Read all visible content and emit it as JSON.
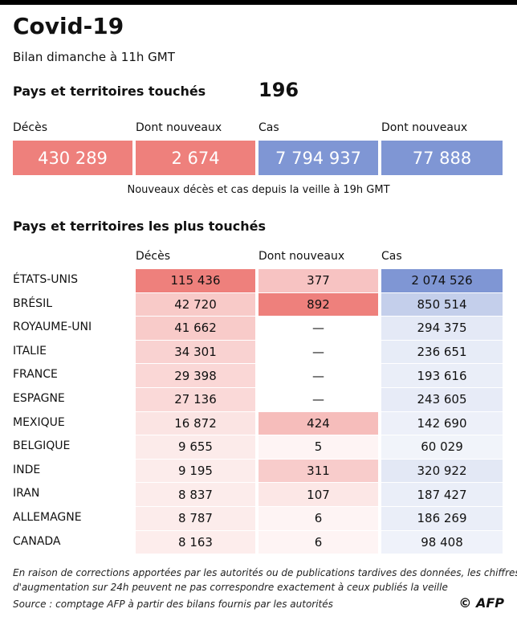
{
  "header": {
    "title": "Covid-19",
    "subtitle": "Bilan dimanche à 11h GMT"
  },
  "affected": {
    "label": "Pays et territoires touchés",
    "value": "196"
  },
  "summary": {
    "cards": [
      {
        "label": "Décès",
        "value": "430 289"
      },
      {
        "label": "Dont nouveaux",
        "value": "2 674"
      },
      {
        "label": "Cas",
        "value": "7 794 937"
      },
      {
        "label": "Dont nouveaux",
        "value": "77 888"
      }
    ],
    "note": "Nouveaux décès et cas depuis la veille à 19h GMT"
  },
  "table": {
    "title": "Pays et territoires les plus touchés",
    "columns": [
      "Décès",
      "Dont nouveaux",
      "Cas"
    ],
    "rows": [
      [
        "ÉTATS-UNIS",
        "115 436",
        "377",
        "2 074 526"
      ],
      [
        "BRÉSIL",
        "42 720",
        "892",
        "850 514"
      ],
      [
        "ROYAUME-UNI",
        "41 662",
        "—",
        "294 375"
      ],
      [
        "ITALIE",
        "34 301",
        "—",
        "236 651"
      ],
      [
        "FRANCE",
        "29 398",
        "—",
        "193 616"
      ],
      [
        "ESPAGNE",
        "27 136",
        "—",
        "243 605"
      ],
      [
        "MEXIQUE",
        "16 872",
        "424",
        "142 690"
      ],
      [
        "BELGIQUE",
        "9 655",
        "5",
        "60 029"
      ],
      [
        "INDE",
        "9 195",
        "311",
        "320 922"
      ],
      [
        "IRAN",
        "8 837",
        "107",
        "187 427"
      ],
      [
        "ALLEMAGNE",
        "8 787",
        "6",
        "186 269"
      ],
      [
        "CANADA",
        "8 163",
        "6",
        "98 408"
      ]
    ]
  },
  "footer": {
    "notes": [
      "En raison de corrections apportées par les autorités ou de publications tardives des données, les chiffres",
      "d'augmentation sur 24h peuvent ne pas correspondre exactement à ceux publiés la veille"
    ],
    "source": "Source : comptage AFP à partir des bilans fournis par les autorités",
    "credit": "© AFP"
  }
}
